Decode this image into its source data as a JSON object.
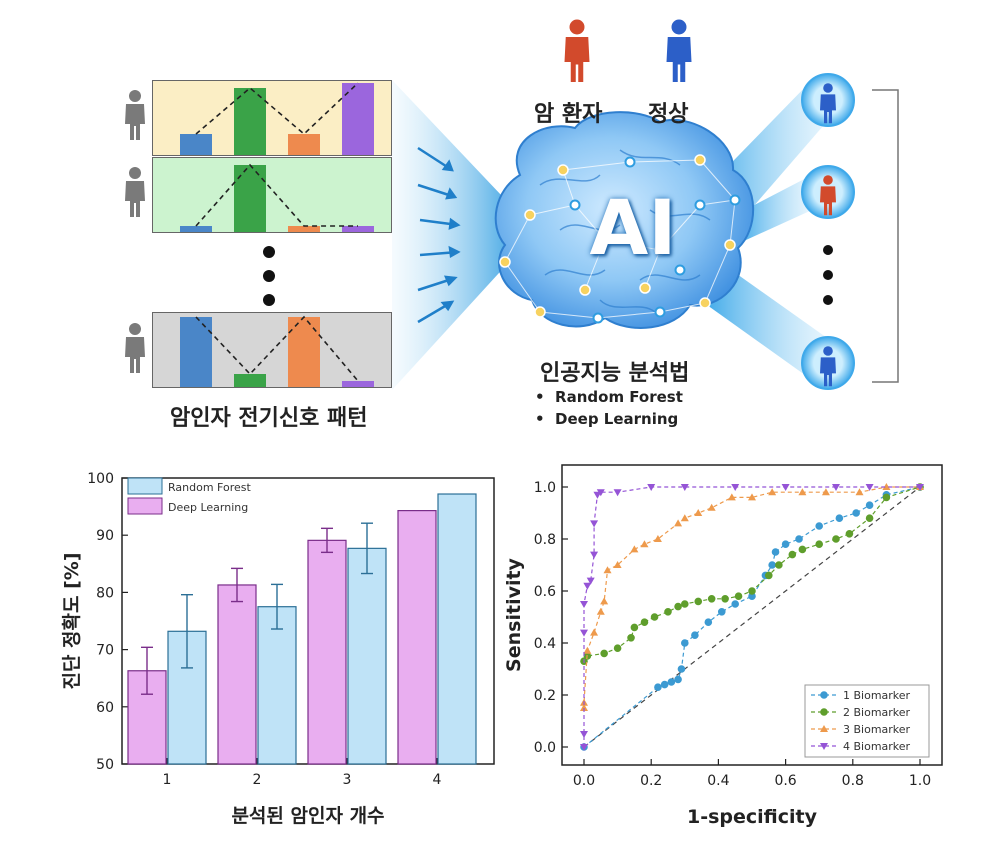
{
  "top": {
    "legend_cancer": "암 환자",
    "legend_normal": "정상",
    "ai_text": "AI",
    "ai_method_title": "인공지능 분석법",
    "methods": [
      "Random Forest",
      "Deep Learning"
    ],
    "pattern_caption": "암인자 전기신호 패턴",
    "colors": {
      "panel1": "#fbeec5",
      "panel2": "#ccf3cf",
      "panel3": "#d6d6d6",
      "blue": "#4a86c8",
      "green": "#3aa348",
      "orange": "#ee8a4e",
      "purple": "#9b66dd",
      "cancer": "#d24a2c",
      "normal": "#2c5fc8"
    }
  },
  "chart_data": [
    {
      "type": "bar",
      "ylabel": "진단 정확도 [%]",
      "xlabel": "분석된 암인자 개수",
      "categories": [
        "1",
        "2",
        "3",
        "4"
      ],
      "ylim": [
        50,
        100
      ],
      "yticks": [
        "50",
        "60",
        "70",
        "80",
        "90",
        "100"
      ],
      "legend_position": "top-left",
      "series": [
        {
          "name": "Random Forest",
          "color": "#bfe3f7",
          "values": [
            73.2,
            77.5,
            87.7,
            97.2
          ],
          "errors": [
            6.4,
            3.9,
            4.4,
            0
          ]
        },
        {
          "name": "Deep Learning",
          "color": "#e9aef0",
          "values": [
            66.3,
            81.3,
            89.1,
            94.3
          ],
          "errors": [
            4.1,
            2.9,
            2.1,
            0
          ]
        }
      ]
    },
    {
      "type": "line",
      "xlabel": "1-specificity",
      "ylabel": "Sensitivity",
      "xlim": [
        0,
        1
      ],
      "ylim": [
        0,
        1
      ],
      "xticks": [
        "0.0",
        "0.2",
        "0.4",
        "0.6",
        "0.8",
        "1.0"
      ],
      "yticks": [
        "0.0",
        "0.2",
        "0.4",
        "0.6",
        "0.8",
        "1.0"
      ],
      "legend_position": "bottom-right",
      "series": [
        {
          "name": "1 Biomarker",
          "color": "#3c9ad2",
          "marker": "circle",
          "x": [
            0,
            0.22,
            0.24,
            0.26,
            0.28,
            0.29,
            0.3,
            0.33,
            0.37,
            0.41,
            0.45,
            0.5,
            0.54,
            0.56,
            0.57,
            0.6,
            0.64,
            0.7,
            0.76,
            0.81,
            0.85,
            0.9,
            1.0
          ],
          "y": [
            0,
            0.23,
            0.24,
            0.25,
            0.26,
            0.3,
            0.4,
            0.43,
            0.48,
            0.52,
            0.55,
            0.58,
            0.66,
            0.7,
            0.75,
            0.78,
            0.8,
            0.85,
            0.88,
            0.9,
            0.93,
            0.97,
            1.0
          ]
        },
        {
          "name": "2 Biomarker",
          "color": "#5f9e2c",
          "marker": "circle",
          "x": [
            0,
            0.01,
            0.06,
            0.1,
            0.14,
            0.15,
            0.18,
            0.21,
            0.25,
            0.28,
            0.3,
            0.34,
            0.38,
            0.42,
            0.46,
            0.5,
            0.55,
            0.58,
            0.62,
            0.65,
            0.7,
            0.75,
            0.79,
            0.85,
            0.9,
            1.0
          ],
          "y": [
            0.33,
            0.35,
            0.36,
            0.38,
            0.42,
            0.46,
            0.48,
            0.5,
            0.52,
            0.54,
            0.55,
            0.56,
            0.57,
            0.57,
            0.58,
            0.6,
            0.66,
            0.7,
            0.74,
            0.76,
            0.78,
            0.8,
            0.82,
            0.88,
            0.96,
            1.0
          ]
        },
        {
          "name": "3 Biomarker",
          "color": "#ee9a4c",
          "marker": "triangle-up",
          "x": [
            0,
            0.0,
            0.01,
            0.03,
            0.05,
            0.06,
            0.07,
            0.1,
            0.15,
            0.18,
            0.22,
            0.28,
            0.3,
            0.34,
            0.38,
            0.44,
            0.5,
            0.56,
            0.65,
            0.72,
            0.82,
            0.9,
            1.0
          ],
          "y": [
            0.15,
            0.17,
            0.37,
            0.44,
            0.52,
            0.56,
            0.68,
            0.7,
            0.76,
            0.78,
            0.8,
            0.86,
            0.88,
            0.9,
            0.92,
            0.96,
            0.96,
            0.98,
            0.98,
            0.98,
            0.98,
            1.0,
            1.0
          ]
        },
        {
          "name": "4 Biomarker",
          "color": "#9554d6",
          "marker": "triangle-down",
          "x": [
            0,
            0.0,
            0.0,
            0.0,
            0.01,
            0.02,
            0.03,
            0.03,
            0.04,
            0.05,
            0.1,
            0.2,
            0.3,
            0.45,
            0.6,
            0.75,
            0.85,
            1.0
          ],
          "y": [
            0,
            0.05,
            0.44,
            0.55,
            0.62,
            0.64,
            0.74,
            0.86,
            0.97,
            0.98,
            0.98,
            1.0,
            1.0,
            1.0,
            1.0,
            1.0,
            1.0,
            1.0
          ]
        }
      ]
    }
  ]
}
